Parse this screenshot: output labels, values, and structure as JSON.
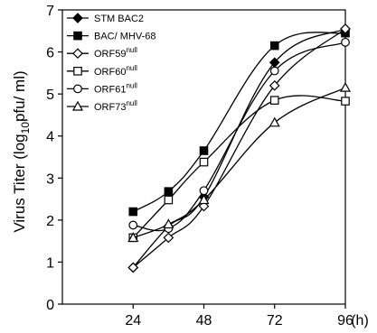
{
  "chart_data": {
    "type": "line",
    "title": "",
    "xlabel": "",
    "x_unit_label": "(h)",
    "ylabel_parts": {
      "pre": "Virus Titer (log",
      "sub": "10",
      "post": "pfu/ ml)"
    },
    "x": [
      24,
      36,
      48,
      72,
      96
    ],
    "xticks": [
      24,
      48,
      72,
      96
    ],
    "xlim": [
      0,
      96
    ],
    "yticks": [
      0,
      1,
      2,
      3,
      4,
      5,
      6,
      7
    ],
    "ylim": [
      0,
      7
    ],
    "grid": false,
    "legend_position": "top-left",
    "series": [
      {
        "name": "STM BAC2",
        "name_base": "STM BAC2",
        "name_sup": "",
        "marker": "diamond",
        "filled": true,
        "values": [
          0.87,
          1.85,
          2.55,
          5.75,
          6.55
        ]
      },
      {
        "name": "BAC/ MHV-68",
        "name_base": "BAC/ MHV-68",
        "name_sup": "",
        "marker": "square",
        "filled": true,
        "values": [
          2.2,
          2.68,
          3.65,
          6.15,
          6.45
        ]
      },
      {
        "name": "ORF59null",
        "name_base": "ORF59",
        "name_sup": "null",
        "marker": "diamond",
        "filled": false,
        "values": [
          0.87,
          1.58,
          2.33,
          5.2,
          6.55
        ]
      },
      {
        "name": "ORF60null",
        "name_base": "ORF60",
        "name_sup": "null",
        "marker": "square",
        "filled": false,
        "values": [
          1.58,
          2.48,
          3.38,
          4.85,
          4.83
        ]
      },
      {
        "name": "ORF61null",
        "name_base": "ORF61",
        "name_sup": "null",
        "marker": "circle",
        "filled": false,
        "values": [
          1.88,
          1.8,
          2.7,
          5.55,
          6.23
        ]
      },
      {
        "name": "ORF73null",
        "name_base": "ORF73",
        "name_sup": "null",
        "marker": "triangle",
        "filled": false,
        "values": [
          1.58,
          1.9,
          2.48,
          4.32,
          5.15
        ]
      }
    ]
  }
}
